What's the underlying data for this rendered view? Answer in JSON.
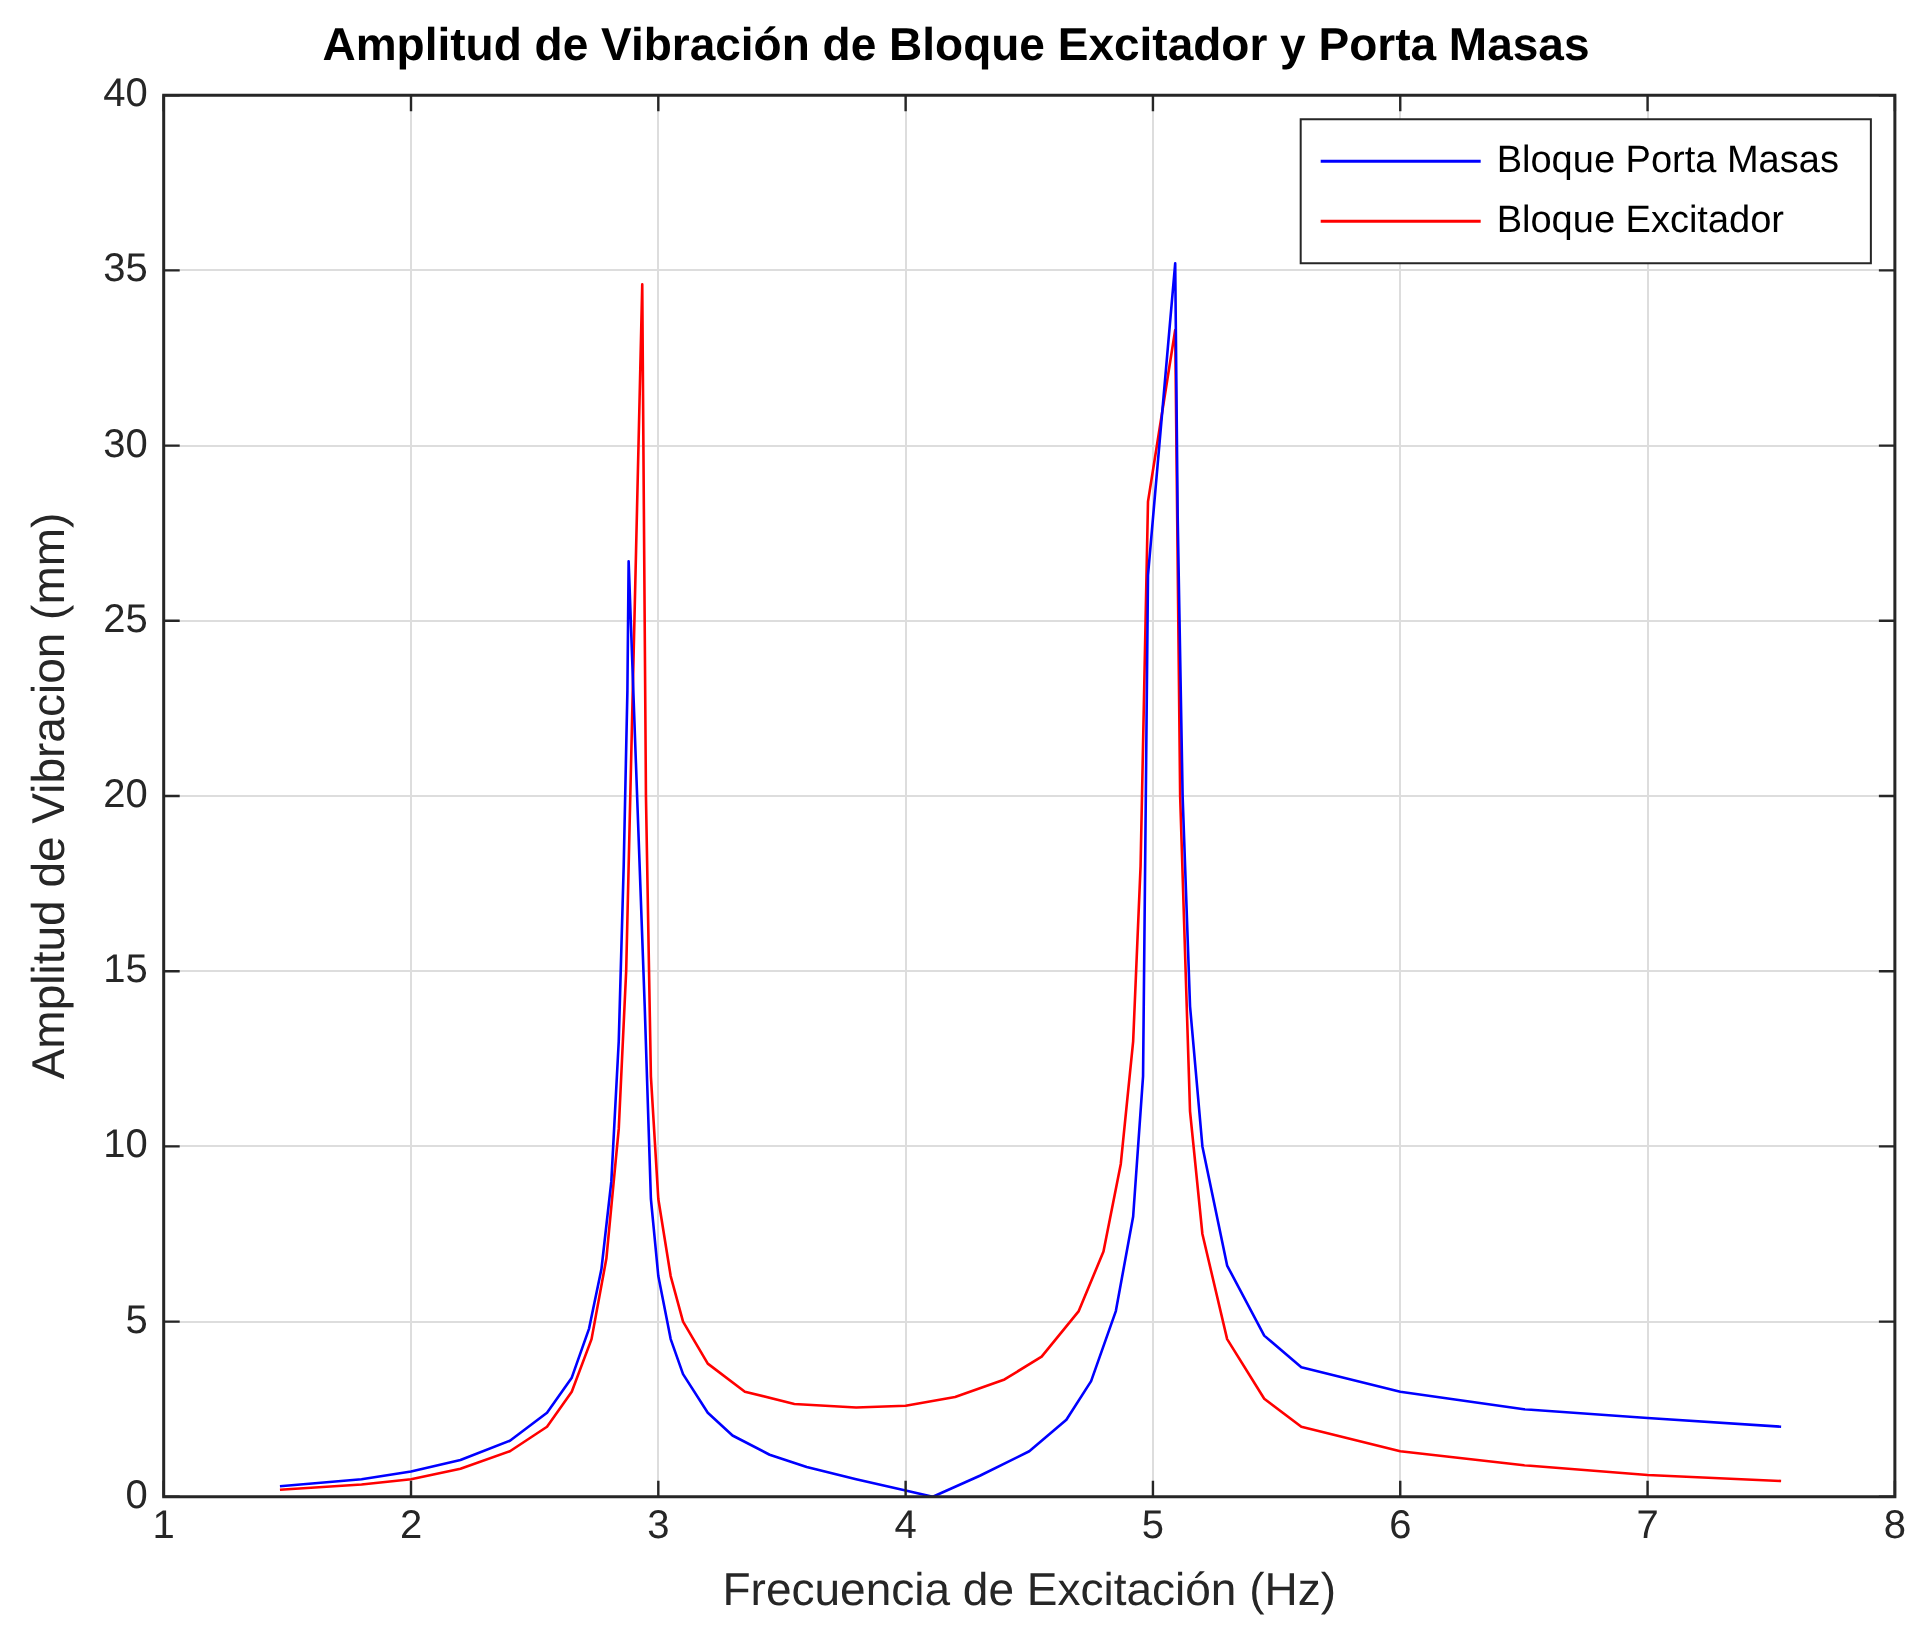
{
  "chart_data": {
    "type": "line",
    "title": "Amplitud de Vibración de Bloque Excitador y Porta Masas",
    "xlabel": "Frecuencia de Excitación (Hz)",
    "ylabel": "Amplitud de Vibracion (mm)",
    "xlim": [
      1,
      8
    ],
    "xticks": [
      1,
      2,
      3,
      4,
      5,
      6,
      7,
      8
    ],
    "ylim": [
      0,
      40
    ],
    "yticks": [
      0,
      5,
      10,
      15,
      20,
      25,
      30,
      35,
      40
    ],
    "grid": true,
    "legend": "top right",
    "series": [
      {
        "name": "Bloque Porta Masas",
        "color": "#0000ff",
        "x": [
          1.47,
          1.8,
          2.0,
          2.2,
          2.4,
          2.55,
          2.65,
          2.72,
          2.77,
          2.81,
          2.84,
          2.86,
          2.875,
          2.88,
          2.945,
          2.97,
          3.0,
          3.05,
          3.1,
          3.2,
          3.3,
          3.45,
          3.6,
          3.8,
          4.0,
          4.11,
          4.3,
          4.5,
          4.65,
          4.75,
          4.85,
          4.92,
          4.96,
          4.98,
          5.09,
          5.1,
          5.12,
          5.15,
          5.2,
          5.3,
          5.45,
          5.6,
          6.0,
          6.5,
          7.0,
          7.54
        ],
        "values": [
          0.3,
          0.5,
          0.72,
          1.05,
          1.6,
          2.4,
          3.4,
          4.8,
          6.5,
          9,
          13,
          18,
          23,
          26.7,
          14,
          8.5,
          6.3,
          4.5,
          3.5,
          2.4,
          1.75,
          1.2,
          0.85,
          0.5,
          0.18,
          0,
          0.6,
          1.3,
          2.2,
          3.3,
          5.3,
          8,
          12,
          26.3,
          35.2,
          28,
          20,
          14,
          10,
          6.6,
          4.6,
          3.7,
          3.0,
          2.5,
          2.25,
          2.0
        ]
      },
      {
        "name": "Bloque Excitador",
        "color": "#ff0000",
        "x": [
          1.47,
          1.8,
          2.0,
          2.2,
          2.4,
          2.55,
          2.65,
          2.73,
          2.79,
          2.84,
          2.87,
          2.91,
          2.935,
          2.95,
          2.97,
          3.0,
          3.05,
          3.1,
          3.2,
          3.35,
          3.55,
          3.8,
          4.0,
          4.2,
          4.4,
          4.55,
          4.7,
          4.8,
          4.87,
          4.92,
          4.95,
          4.98,
          5.09,
          5.11,
          5.15,
          5.2,
          5.3,
          5.45,
          5.6,
          6.0,
          6.5,
          7.0,
          7.54
        ],
        "values": [
          0.2,
          0.35,
          0.5,
          0.8,
          1.3,
          2.0,
          3.0,
          4.5,
          6.8,
          10.5,
          15,
          27,
          34.6,
          20,
          12,
          8.5,
          6.3,
          5.0,
          3.8,
          3.0,
          2.65,
          2.55,
          2.6,
          2.85,
          3.35,
          4.0,
          5.3,
          7,
          9.5,
          13,
          18,
          28.4,
          33.3,
          20,
          11,
          7.5,
          4.5,
          2.8,
          2.0,
          1.3,
          0.9,
          0.62,
          0.45
        ]
      }
    ]
  }
}
